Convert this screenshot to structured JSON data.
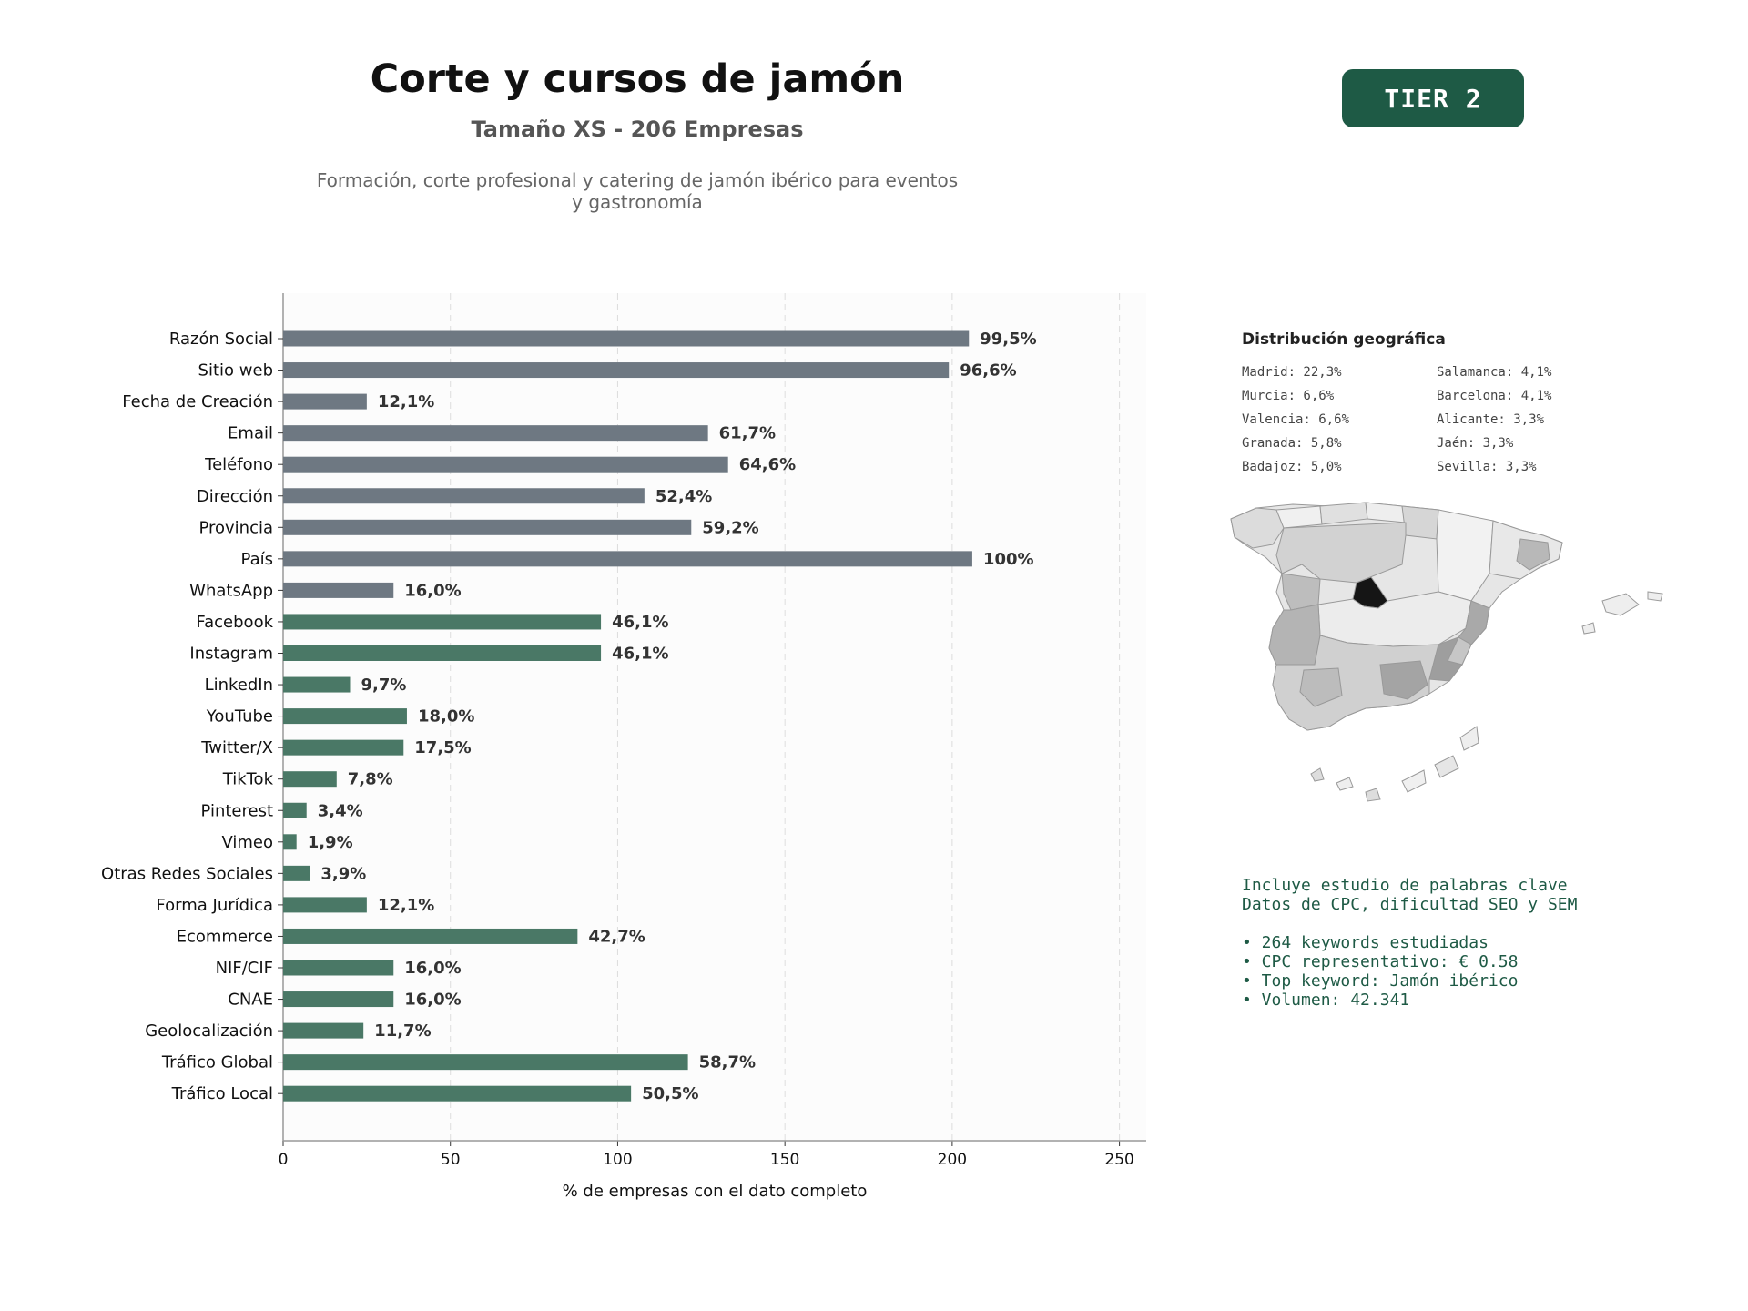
{
  "header": {
    "title": "Corte y cursos de jamón",
    "subtitle": "Tamaño XS - 206 Empresas",
    "description_line1": "Formación, corte profesional y catering de jamón ibérico para eventos",
    "description_line2": "y gastronomía",
    "tier": "TIER 2"
  },
  "colors": {
    "bar_basic": "#6e7882",
    "bar_extra": "#4a7866",
    "accent": "#1e5a45"
  },
  "chart_data": {
    "type": "bar",
    "orientation": "horizontal",
    "categories": [
      "Razón Social",
      "Sitio web",
      "Fecha de Creación",
      "Email",
      "Teléfono",
      "Dirección",
      "Provincia",
      "País",
      "WhatsApp",
      "Facebook",
      "Instagram",
      "LinkedIn",
      "YouTube",
      "Twitter/X",
      "TikTok",
      "Pinterest",
      "Vimeo",
      "Otras Redes Sociales",
      "Forma Jurídica",
      "Ecommerce",
      "NIF/CIF",
      "CNAE",
      "Geolocalización",
      "Tráfico Global",
      "Tráfico Local"
    ],
    "values": [
      205,
      199,
      25,
      127,
      133,
      108,
      122,
      206,
      33,
      95,
      95,
      20,
      37,
      36,
      16,
      7,
      4,
      8,
      25,
      88,
      33,
      33,
      24,
      121,
      104
    ],
    "value_labels": [
      "99,5%",
      "96,6%",
      "12,1%",
      "61,7%",
      "64,6%",
      "52,4%",
      "59,2%",
      "100%",
      "16,0%",
      "46,1%",
      "46,1%",
      "9,7%",
      "18,0%",
      "17,5%",
      "7,8%",
      "3,4%",
      "1,9%",
      "3,9%",
      "12,1%",
      "42,7%",
      "16,0%",
      "16,0%",
      "11,7%",
      "58,7%",
      "50,5%"
    ],
    "series_group": [
      "basic",
      "basic",
      "basic",
      "basic",
      "basic",
      "basic",
      "basic",
      "basic",
      "basic",
      "extra",
      "extra",
      "extra",
      "extra",
      "extra",
      "extra",
      "extra",
      "extra",
      "extra",
      "extra",
      "extra",
      "extra",
      "extra",
      "extra",
      "extra",
      "extra"
    ],
    "xlabel": "% de empresas con el dato completo",
    "xlim": [
      0,
      258
    ],
    "xticks": [
      0,
      50,
      100,
      150,
      200,
      250
    ],
    "grid": "vertical dashed"
  },
  "geo": {
    "title": "Distribución geográfica",
    "items": [
      "Madrid: 22,3%",
      "Salamanca: 4,1%",
      "Murcia: 6,6%",
      "Barcelona: 4,1%",
      "Valencia: 6,6%",
      "Alicante: 3,3%",
      "Granada: 5,8%",
      "Jaén: 3,3%",
      "Badajoz: 5,0%",
      "Sevilla: 3,3%"
    ]
  },
  "keywords": {
    "line1": "Incluye estudio de palabras clave",
    "line2": "Datos de CPC, dificultad SEO y SEM",
    "bullet1": "• 264 keywords estudiadas",
    "bullet2": "• CPC representativo: € 0.58",
    "bullet3": "• Top keyword: Jamón ibérico",
    "bullet4": "• Volumen: 42.341"
  }
}
